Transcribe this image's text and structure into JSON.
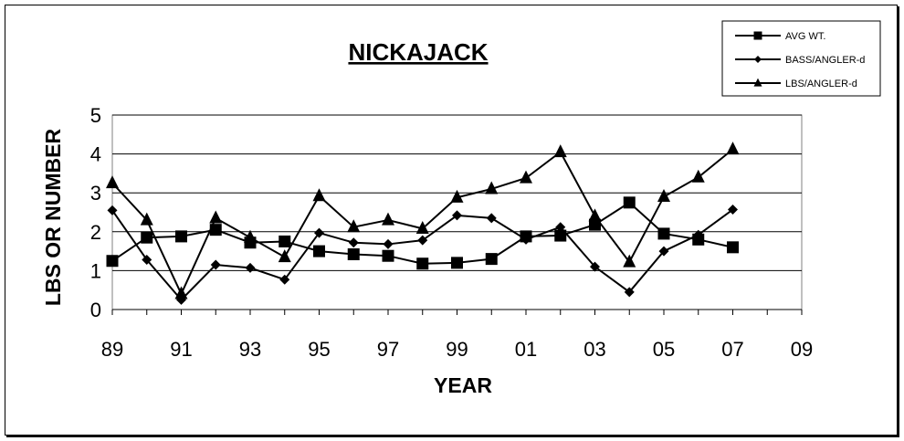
{
  "chart_data": {
    "type": "line",
    "title": "NICKAJACK",
    "xlabel": "YEAR",
    "ylabel": "LBS OR NUMBER",
    "ylim": [
      0,
      5
    ],
    "xlim": [
      1989,
      2009
    ],
    "y_ticks": [
      "0",
      "1",
      "2",
      "3",
      "4",
      "5"
    ],
    "x_ticks": [
      "89",
      "91",
      "93",
      "95",
      "97",
      "99",
      "01",
      "03",
      "05",
      "07",
      "09"
    ],
    "grid": "horizontal",
    "legend_position": "top-right",
    "x": [
      1989,
      1990,
      1991,
      1992,
      1993,
      1994,
      1995,
      1996,
      1997,
      1998,
      1999,
      2000,
      2001,
      2002,
      2003,
      2004,
      2005,
      2006,
      2007
    ],
    "series": [
      {
        "name": "AVG WT.",
        "marker": "square",
        "values": [
          1.25,
          1.85,
          1.88,
          2.05,
          1.72,
          1.75,
          1.5,
          1.42,
          1.38,
          1.18,
          1.2,
          1.3,
          1.88,
          1.9,
          2.18,
          2.75,
          1.95,
          1.8,
          1.6
        ]
      },
      {
        "name": "BASS/ANGLER-d",
        "marker": "diamond",
        "values": [
          2.55,
          1.28,
          0.25,
          1.15,
          1.07,
          0.77,
          1.97,
          1.72,
          1.68,
          1.78,
          2.42,
          2.35,
          1.8,
          2.12,
          1.1,
          0.45,
          1.5,
          1.92,
          2.57
        ]
      },
      {
        "name": "LBS/ANGLER-d",
        "marker": "triangle",
        "values": [
          3.25,
          2.3,
          0.4,
          2.35,
          1.85,
          1.35,
          2.92,
          2.12,
          2.3,
          2.08,
          2.88,
          3.1,
          3.38,
          4.05,
          2.4,
          1.22,
          2.9,
          3.4,
          4.12
        ]
      }
    ],
    "colors": {
      "line": "#000000",
      "grid": "#000000",
      "background": "#ffffff"
    }
  }
}
